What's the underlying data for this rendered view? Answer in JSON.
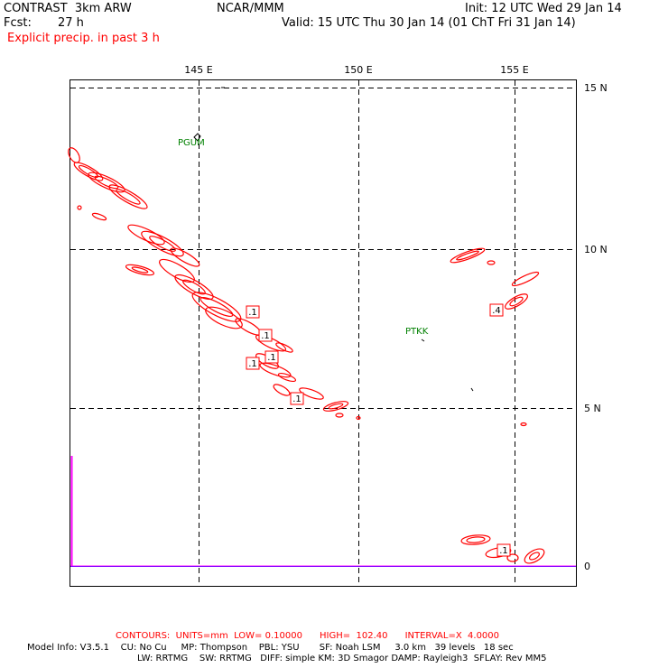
{
  "header": {
    "model_label": "CONTRAST  3km ARW",
    "org": "NCAR/MMM",
    "init": "Init: 12 UTC Wed 29 Jan 14",
    "fcst_label": "Fcst:",
    "fcst_value": "27 h",
    "valid": "Valid: 15 UTC Thu 30 Jan 14 (01 ChT Fri 31 Jan 14)",
    "field": "Explicit precip. in past 3 h"
  },
  "map": {
    "lon_labels": [
      "145 E",
      "150 E",
      "155 E"
    ],
    "lat_labels": [
      "15 N",
      "10 N",
      "5 N",
      "0"
    ],
    "stations": [
      "PGUM",
      "PTKK"
    ],
    "contour_labels": [
      ".1",
      ".1",
      ".1",
      ".1",
      ".1",
      ".1",
      ".4",
      ".1"
    ],
    "contour_color": "#ff0000",
    "station_color": "#008000",
    "equator_color": "#ff00ff"
  },
  "footer": {
    "contours": "CONTOURS:  UNITS=mm  LOW= 0.10000      HIGH=  102.40      INTERVAL=X  4.0000",
    "model_info_1": "Model Info: V3.5.1    CU: No Cu     MP: Thompson    PBL: YSU       SF: Noah LSM     3.0 km   39 levels   18 sec",
    "model_info_2": "LW: RRTMG    SW: RRTMG   DIFF: simple KM: 3D Smagor DAMP: Rayleigh3  SFLAY: Rev MM5"
  }
}
